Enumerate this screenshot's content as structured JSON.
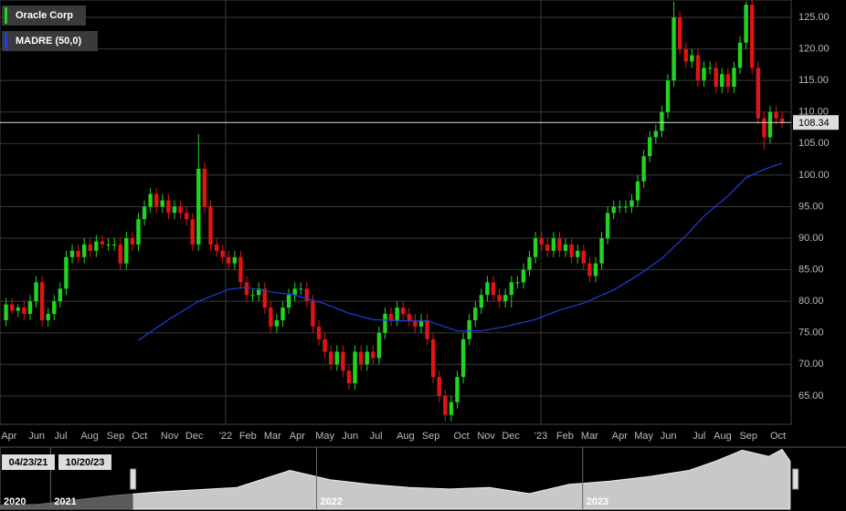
{
  "chart_data": [
    {
      "type": "candlestick",
      "name": "Oracle Corp",
      "up_color": "#22d422",
      "down_color": "#e01414",
      "open": [
        77,
        79.5,
        78.5,
        79,
        78,
        80,
        83,
        77,
        78,
        80,
        82,
        87,
        88,
        87,
        89,
        88,
        89.5,
        89,
        89,
        89,
        86,
        90,
        89,
        93,
        95,
        97,
        95,
        96,
        94,
        95,
        94,
        93,
        89,
        101,
        95,
        89,
        88,
        87,
        86,
        87,
        83,
        81,
        81,
        82,
        79,
        76,
        77,
        79,
        81,
        82,
        82,
        80,
        76,
        74,
        72,
        70,
        72,
        69,
        67,
        72,
        70,
        72,
        71,
        75,
        78,
        77,
        79,
        78,
        77,
        76,
        77,
        74,
        68,
        65,
        62,
        64,
        68,
        74,
        77,
        79,
        81,
        83,
        81,
        80,
        81,
        83,
        83,
        85,
        87,
        90,
        89,
        88,
        90,
        88,
        89,
        87,
        88,
        86,
        84,
        86,
        90,
        94,
        95,
        95,
        95,
        96,
        99,
        103,
        106,
        107,
        110,
        115,
        125,
        120,
        118,
        119,
        115,
        117,
        117,
        114,
        116,
        114,
        117,
        121,
        127,
        117,
        109,
        106,
        110,
        109
      ],
      "high": [
        80.5,
        80.5,
        79.5,
        80,
        81,
        84,
        84,
        79,
        81,
        83,
        88,
        89,
        89,
        90,
        90,
        90.5,
        90.5,
        90,
        90,
        90,
        91,
        91,
        94,
        96,
        98,
        98,
        97,
        97,
        96,
        96,
        95,
        94,
        106.5,
        102,
        96,
        90,
        89,
        88,
        88,
        88,
        84,
        82,
        83,
        83,
        80,
        78,
        80,
        82,
        83,
        83,
        83,
        81,
        77,
        75,
        73,
        73,
        73,
        70,
        73,
        73,
        73,
        73,
        76,
        79,
        79,
        80,
        80,
        79,
        78,
        78,
        78,
        75,
        69,
        66,
        65,
        69,
        75,
        78,
        80,
        82,
        84,
        84,
        82,
        82,
        84,
        84,
        86,
        88,
        91,
        91,
        90,
        91,
        91,
        90,
        90,
        89,
        89,
        87,
        87,
        91,
        95,
        96,
        96,
        96,
        97,
        100,
        104,
        107,
        108,
        111,
        116,
        127.5,
        126,
        121,
        120,
        120,
        118,
        118,
        118,
        117,
        117,
        118,
        122,
        127.5,
        128,
        118,
        110,
        111,
        111,
        110
      ],
      "low": [
        76,
        78,
        77.5,
        77,
        77,
        79,
        76,
        76,
        77,
        79,
        81,
        86,
        86,
        86,
        87,
        87,
        88.5,
        88,
        88,
        85,
        85,
        88,
        88,
        92,
        94,
        94,
        94,
        93,
        93,
        93,
        92,
        88,
        88,
        94,
        88,
        87,
        86,
        85,
        85,
        82,
        80,
        80,
        80,
        78,
        75,
        75,
        76,
        78,
        80,
        81,
        79,
        75,
        73,
        71,
        69,
        69,
        68,
        66,
        66,
        69,
        69,
        70,
        70,
        74,
        76,
        76,
        77,
        76,
        75,
        75,
        73,
        67,
        64,
        61,
        61,
        63,
        67,
        73,
        76,
        78,
        80,
        80,
        79,
        79,
        79,
        82,
        82,
        84,
        86,
        88,
        87,
        87,
        87,
        87,
        86,
        86,
        85,
        83,
        83,
        85,
        89,
        93,
        94,
        94,
        94,
        95,
        98,
        102,
        105,
        106,
        109,
        114,
        119,
        117,
        117,
        114,
        114,
        116,
        113,
        113,
        113,
        113,
        116,
        120,
        116,
        108,
        104,
        105,
        108,
        107.5
      ],
      "close": [
        79.5,
        78.5,
        79,
        78,
        80,
        83,
        77,
        78,
        80,
        82,
        87,
        88,
        87,
        89,
        88,
        89.5,
        89,
        89,
        89,
        86,
        90,
        89,
        93,
        95,
        97,
        95,
        96,
        94,
        95,
        94,
        93,
        89,
        101,
        95,
        89,
        88,
        87,
        86,
        87,
        83,
        81,
        81,
        82,
        79,
        76,
        77,
        79,
        81,
        82,
        82,
        80,
        76,
        74,
        72,
        70,
        72,
        69,
        67,
        72,
        70,
        72,
        71,
        75,
        78,
        77,
        79,
        78,
        77,
        76,
        77,
        74,
        68,
        65,
        62,
        64,
        68,
        74,
        77,
        79,
        81,
        83,
        81,
        80,
        81,
        83,
        83,
        85,
        87,
        90,
        89,
        88,
        90,
        88,
        89,
        87,
        88,
        86,
        84,
        86,
        90,
        94,
        95,
        95,
        95,
        96,
        99,
        103,
        106,
        107,
        110,
        115,
        125,
        120,
        118,
        119,
        115,
        117,
        117,
        114,
        116,
        114,
        117,
        121,
        127,
        117,
        109,
        106,
        110,
        109,
        108.34
      ],
      "lines": [
        {
          "name": "MADRE (50,0)",
          "color": "#1f3fe0",
          "x": [
            22,
            27,
            32,
            37,
            40,
            44,
            48,
            53,
            57,
            61,
            66,
            70,
            75,
            79,
            83,
            88,
            92,
            96,
            101,
            105,
            109,
            113,
            116,
            120,
            123,
            126,
            129
          ],
          "values": [
            73.8,
            77.1,
            80.0,
            81.9,
            82.2,
            81.5,
            81.0,
            79.6,
            78.1,
            77.1,
            76.9,
            76.9,
            75.3,
            75.3,
            76.0,
            77.1,
            78.6,
            79.7,
            81.8,
            84.1,
            86.8,
            90.4,
            93.5,
            96.7,
            99.6,
            100.9,
            101.9
          ]
        }
      ],
      "last_price": 108.34,
      "xlim": [
        -1,
        130.5
      ],
      "xticks": [
        {
          "value": 0.5,
          "label": "Apr"
        },
        {
          "value": 5.1,
          "label": "Jun"
        },
        {
          "value": 9.1,
          "label": "Jul"
        },
        {
          "value": 13.9,
          "label": "Aug"
        },
        {
          "value": 18.2,
          "label": "Sep"
        },
        {
          "value": 22.2,
          "label": "Oct"
        },
        {
          "value": 27.2,
          "label": "Nov"
        },
        {
          "value": 31.3,
          "label": "Dec"
        },
        {
          "value": 36.5,
          "label": "'22"
        },
        {
          "value": 40.2,
          "label": "Feb"
        },
        {
          "value": 44.3,
          "label": "Mar"
        },
        {
          "value": 48.4,
          "label": "Apr"
        },
        {
          "value": 53,
          "label": "May"
        },
        {
          "value": 57.2,
          "label": "Jun"
        },
        {
          "value": 61.5,
          "label": "Jul"
        },
        {
          "value": 66.4,
          "label": "Aug"
        },
        {
          "value": 70.6,
          "label": "Sep"
        },
        {
          "value": 75.7,
          "label": "Oct"
        },
        {
          "value": 79.8,
          "label": "Nov"
        },
        {
          "value": 83.9,
          "label": "Dec"
        },
        {
          "value": 88.9,
          "label": "'23"
        },
        {
          "value": 92.9,
          "label": "Feb"
        },
        {
          "value": 97,
          "label": "Mar"
        },
        {
          "value": 102,
          "label": "Apr"
        },
        {
          "value": 106,
          "label": "May"
        },
        {
          "value": 110.1,
          "label": "Jun"
        },
        {
          "value": 115.2,
          "label": "Jul"
        },
        {
          "value": 119.1,
          "label": "Aug"
        },
        {
          "value": 123.4,
          "label": "Sep"
        },
        {
          "value": 128.3,
          "label": "Oct"
        }
      ],
      "ylim": [
        60.5,
        127.75
      ],
      "yticks": [
        {
          "value": 65,
          "label": "65.00"
        },
        {
          "value": 70,
          "label": "70.00"
        },
        {
          "value": 75,
          "label": "75.00"
        },
        {
          "value": 80,
          "label": "80.00"
        },
        {
          "value": 85,
          "label": "85.00"
        },
        {
          "value": 90,
          "label": "90.00"
        },
        {
          "value": 95,
          "label": "95.00"
        },
        {
          "value": 100,
          "label": "100.00"
        },
        {
          "value": 105,
          "label": "105.00"
        },
        {
          "value": 110,
          "label": "110.00"
        },
        {
          "value": 115,
          "label": "115.00"
        },
        {
          "value": 120,
          "label": "120.00"
        },
        {
          "value": 125,
          "label": "125.00"
        }
      ],
      "grid": true
    },
    {
      "type": "area",
      "color": "#c8c8c8",
      "x": [
        2020.81,
        2020.95,
        2021.1,
        2021.25,
        2021.4,
        2021.55,
        2021.7,
        2021.9,
        2022.05,
        2022.2,
        2022.35,
        2022.5,
        2022.65,
        2022.8,
        2022.95,
        2023.1,
        2023.25,
        2023.4,
        2023.5,
        2023.6,
        2023.7,
        2023.75,
        2023.78
      ],
      "values": [
        55,
        56,
        62,
        68,
        72,
        75,
        78,
        100,
        88,
        82,
        78,
        76,
        78,
        70,
        82,
        86,
        92,
        100,
        112,
        126,
        118,
        127,
        112
      ],
      "xlim": [
        2020.81,
        2023.99
      ],
      "ylim": [
        50,
        130
      ],
      "xticks": [
        {
          "value": 2020.81,
          "label": "2020"
        },
        2021,
        2022,
        2023
      ],
      "range_labels": [
        "04/23/21",
        "10/20/23"
      ],
      "window": [
        2021.31,
        2023.8
      ]
    }
  ]
}
